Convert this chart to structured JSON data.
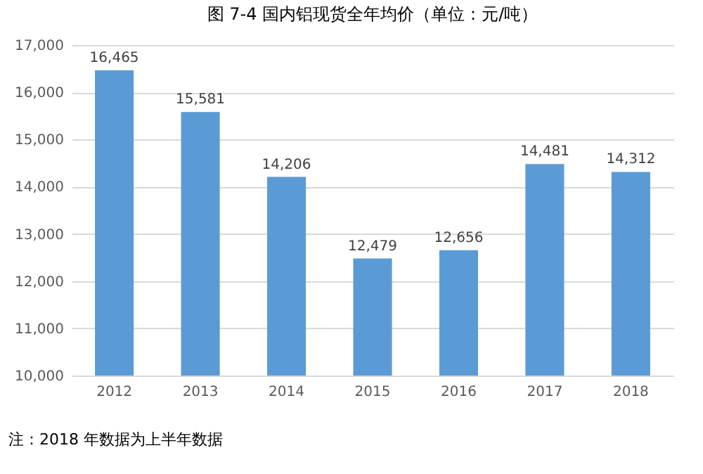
{
  "chart_data": {
    "type": "bar",
    "title": "图 7-4  国内铝现货全年均价（单位：元/吨）",
    "categories": [
      "2012",
      "2013",
      "2014",
      "2015",
      "2016",
      "2017",
      "2018"
    ],
    "values": [
      16465,
      15581,
      14206,
      12479,
      12656,
      14481,
      14312
    ],
    "value_labels": [
      "16,465",
      "15,581",
      "14,206",
      "12,479",
      "12,656",
      "14,481",
      "14,312"
    ],
    "color": "#5b9bd5",
    "ylim": [
      10000,
      17000
    ],
    "yticks": [
      {
        "value": 10000,
        "label": "10,000"
      },
      {
        "value": 11000,
        "label": "11,000"
      },
      {
        "value": 12000,
        "label": "12,000"
      },
      {
        "value": 13000,
        "label": "13,000"
      },
      {
        "value": 14000,
        "label": "14,000"
      },
      {
        "value": 15000,
        "label": "15,000"
      },
      {
        "value": 16000,
        "label": "16,000"
      },
      {
        "value": 17000,
        "label": "17,000"
      }
    ],
    "grid": "y",
    "annotations": [
      "注：2018 年数据为上半年数据"
    ]
  }
}
